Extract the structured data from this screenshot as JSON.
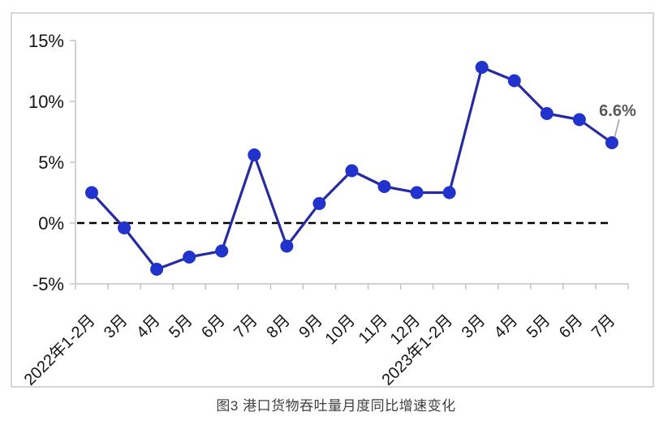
{
  "figure": {
    "caption": "图3 港口货物吞吐量月度同比增速变化"
  },
  "chart_data": {
    "type": "line",
    "title": "图3 港口货物吞吐量月度同比增速变化",
    "series_name": "港口货物吞吐量月度同比增速",
    "categories": [
      "2022年1-2月",
      "3月",
      "4月",
      "5月",
      "6月",
      "7月",
      "8月",
      "9月",
      "10月",
      "11月",
      "12月",
      "2023年1-2月",
      "3月",
      "4月",
      "5月",
      "6月",
      "7月"
    ],
    "values": [
      2.5,
      -0.4,
      -3.8,
      -2.8,
      -2.3,
      5.6,
      -1.9,
      1.6,
      4.3,
      3.0,
      2.5,
      2.5,
      12.8,
      11.7,
      9.0,
      8.5,
      6.6
    ],
    "unit": "%",
    "ylim": [
      -5,
      15
    ],
    "yticks": [
      {
        "value": 15,
        "label": "15%"
      },
      {
        "value": 10,
        "label": "10%"
      },
      {
        "value": 5,
        "label": "5%"
      },
      {
        "value": 0,
        "label": "0%"
      },
      {
        "value": -5,
        "label": "-5%"
      }
    ],
    "zero_reference_line": {
      "value": 0,
      "style": "dashed",
      "color": "#000000"
    },
    "annotation": {
      "target_index": 16,
      "label": "6.6%"
    },
    "legend": "none",
    "grid": "off",
    "x_label_rotation_deg": 45,
    "colors": {
      "line": "#262c9f",
      "marker": "#2133cc",
      "axis": "#c3c3c3",
      "tick_label": "#141414",
      "annotation_text": "#595959",
      "leader_line": "#acacac",
      "figure_border": "#d6d6d6",
      "caption_text": "#3f3f3f",
      "background": "#ffffff"
    }
  }
}
